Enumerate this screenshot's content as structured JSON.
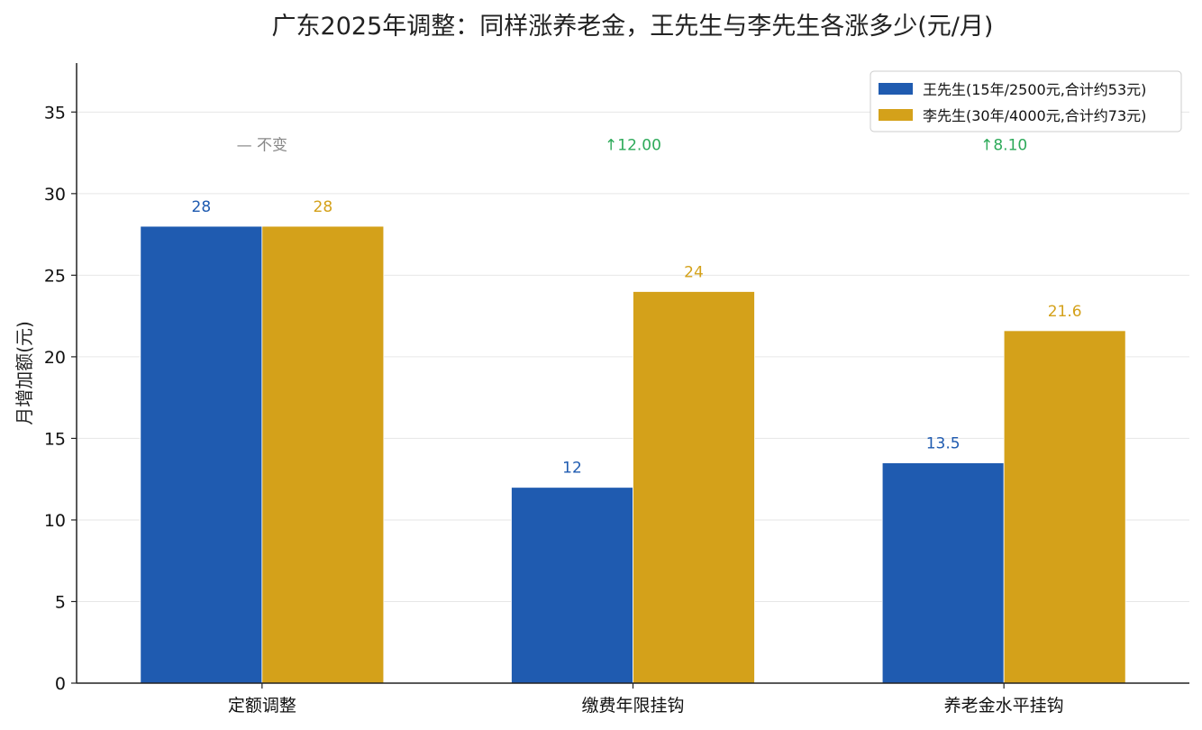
{
  "chart_data": {
    "type": "bar",
    "title": "广东2025年调整：同样涨养老金，王先生与李先生各涨多少(元/月)",
    "xlabel": "",
    "ylabel": "月增加额(元)",
    "ylim": [
      0,
      38
    ],
    "yticks": [
      0,
      5,
      10,
      15,
      20,
      25,
      30,
      35
    ],
    "grid": "horizontal",
    "legend_position": "top-right",
    "categories": [
      "定额调整",
      "缴费年限挂钩",
      "养老金水平挂钩"
    ],
    "series": [
      {
        "name": "王先生(15年/2500元,合计约53元)",
        "color": "#1f5bb0",
        "values": [
          28,
          12,
          13.5
        ],
        "labels": [
          "28",
          "12",
          "13.5"
        ]
      },
      {
        "name": "李先生(30年/4000元,合计约73元)",
        "color": "#d4a11a",
        "values": [
          28,
          24,
          21.6
        ],
        "labels": [
          "28",
          "24",
          "21.6"
        ]
      }
    ],
    "annotations": [
      {
        "category_index": 0,
        "text": "— 不变",
        "color": "#888888",
        "y": 33
      },
      {
        "category_index": 1,
        "text": "↑12.00",
        "color": "#2eaa5a",
        "y": 33
      },
      {
        "category_index": 2,
        "text": "↑8.10",
        "color": "#2eaa5a",
        "y": 33
      }
    ]
  }
}
